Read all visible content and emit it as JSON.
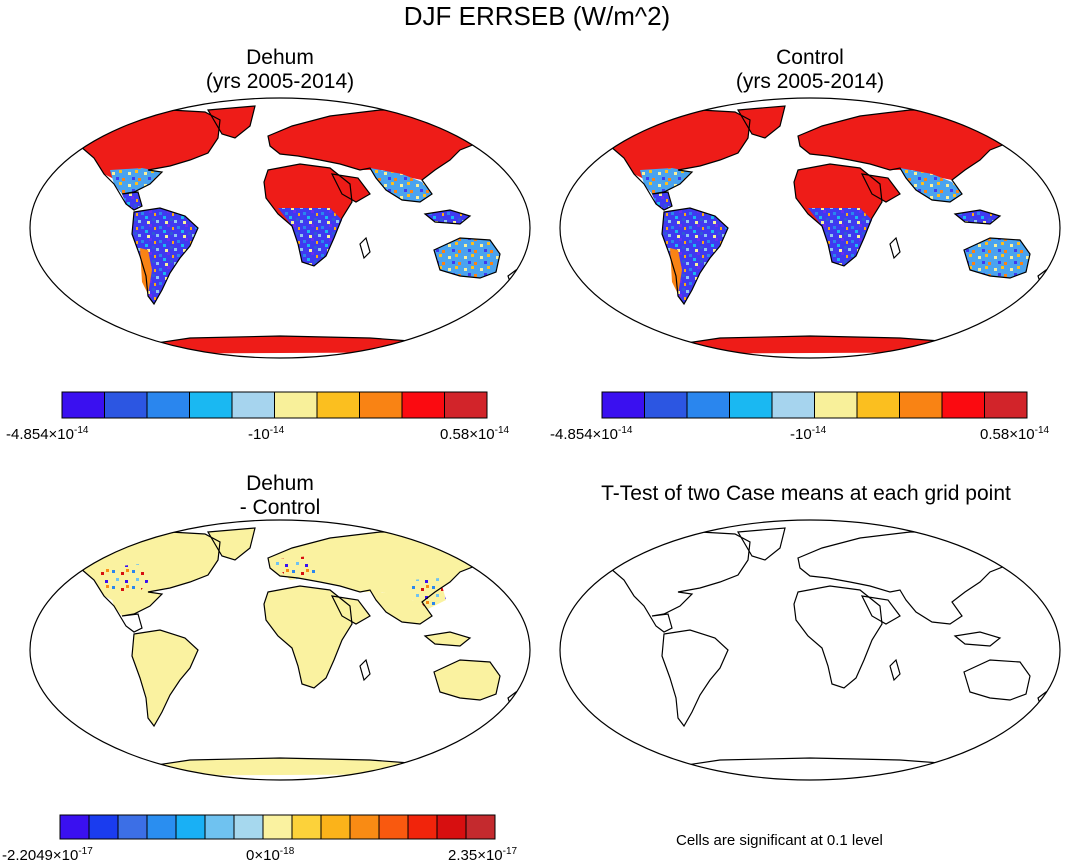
{
  "title": "DJF ERRSEB (W/m^2)",
  "panels": [
    {
      "id": "dehum",
      "title_line1": "Dehum",
      "title_line2": "(yrs 2005-2014)",
      "field": "full"
    },
    {
      "id": "control",
      "title_line1": "Control",
      "title_line2": "(yrs 2005-2014)",
      "field": "full"
    },
    {
      "id": "diff",
      "title_line1": "Dehum",
      "title_line2": "- Control",
      "field": "diff"
    },
    {
      "id": "ttest",
      "title_line1": "T-Test of two Case means at each grid point",
      "title_line2": "",
      "field": "none"
    }
  ],
  "colorbar_top": {
    "colors": [
      "#3a10f0",
      "#2c56e2",
      "#2a86ee",
      "#1ab8f2",
      "#a6d4ee",
      "#f8f09a",
      "#fbbf1f",
      "#f98314",
      "#fb0a10",
      "#d2242a"
    ],
    "ticks": [
      {
        "mant": "-4.854×10",
        "exp": "-14"
      },
      {
        "mant": "-10",
        "exp": "-14"
      },
      {
        "mant": "0.58×10",
        "exp": "-14"
      }
    ]
  },
  "colorbar_bottom": {
    "colors": [
      "#3a10f0",
      "#1a3cef",
      "#3c6fe6",
      "#2a8ef0",
      "#19b0f5",
      "#6fc2f0",
      "#a6d8ee",
      "#faf2a0",
      "#fcd23a",
      "#fbb31a",
      "#f98b14",
      "#f9590f",
      "#f1240b",
      "#d70f10",
      "#c42a2e"
    ],
    "ticks": [
      {
        "mant": "-2.2049×10",
        "exp": "-17"
      },
      {
        "mant": "0×10",
        "exp": "-18"
      },
      {
        "mant": "2.35×10",
        "exp": "-17"
      }
    ]
  },
  "footnote": "Cells are significant at 0.1 level"
}
